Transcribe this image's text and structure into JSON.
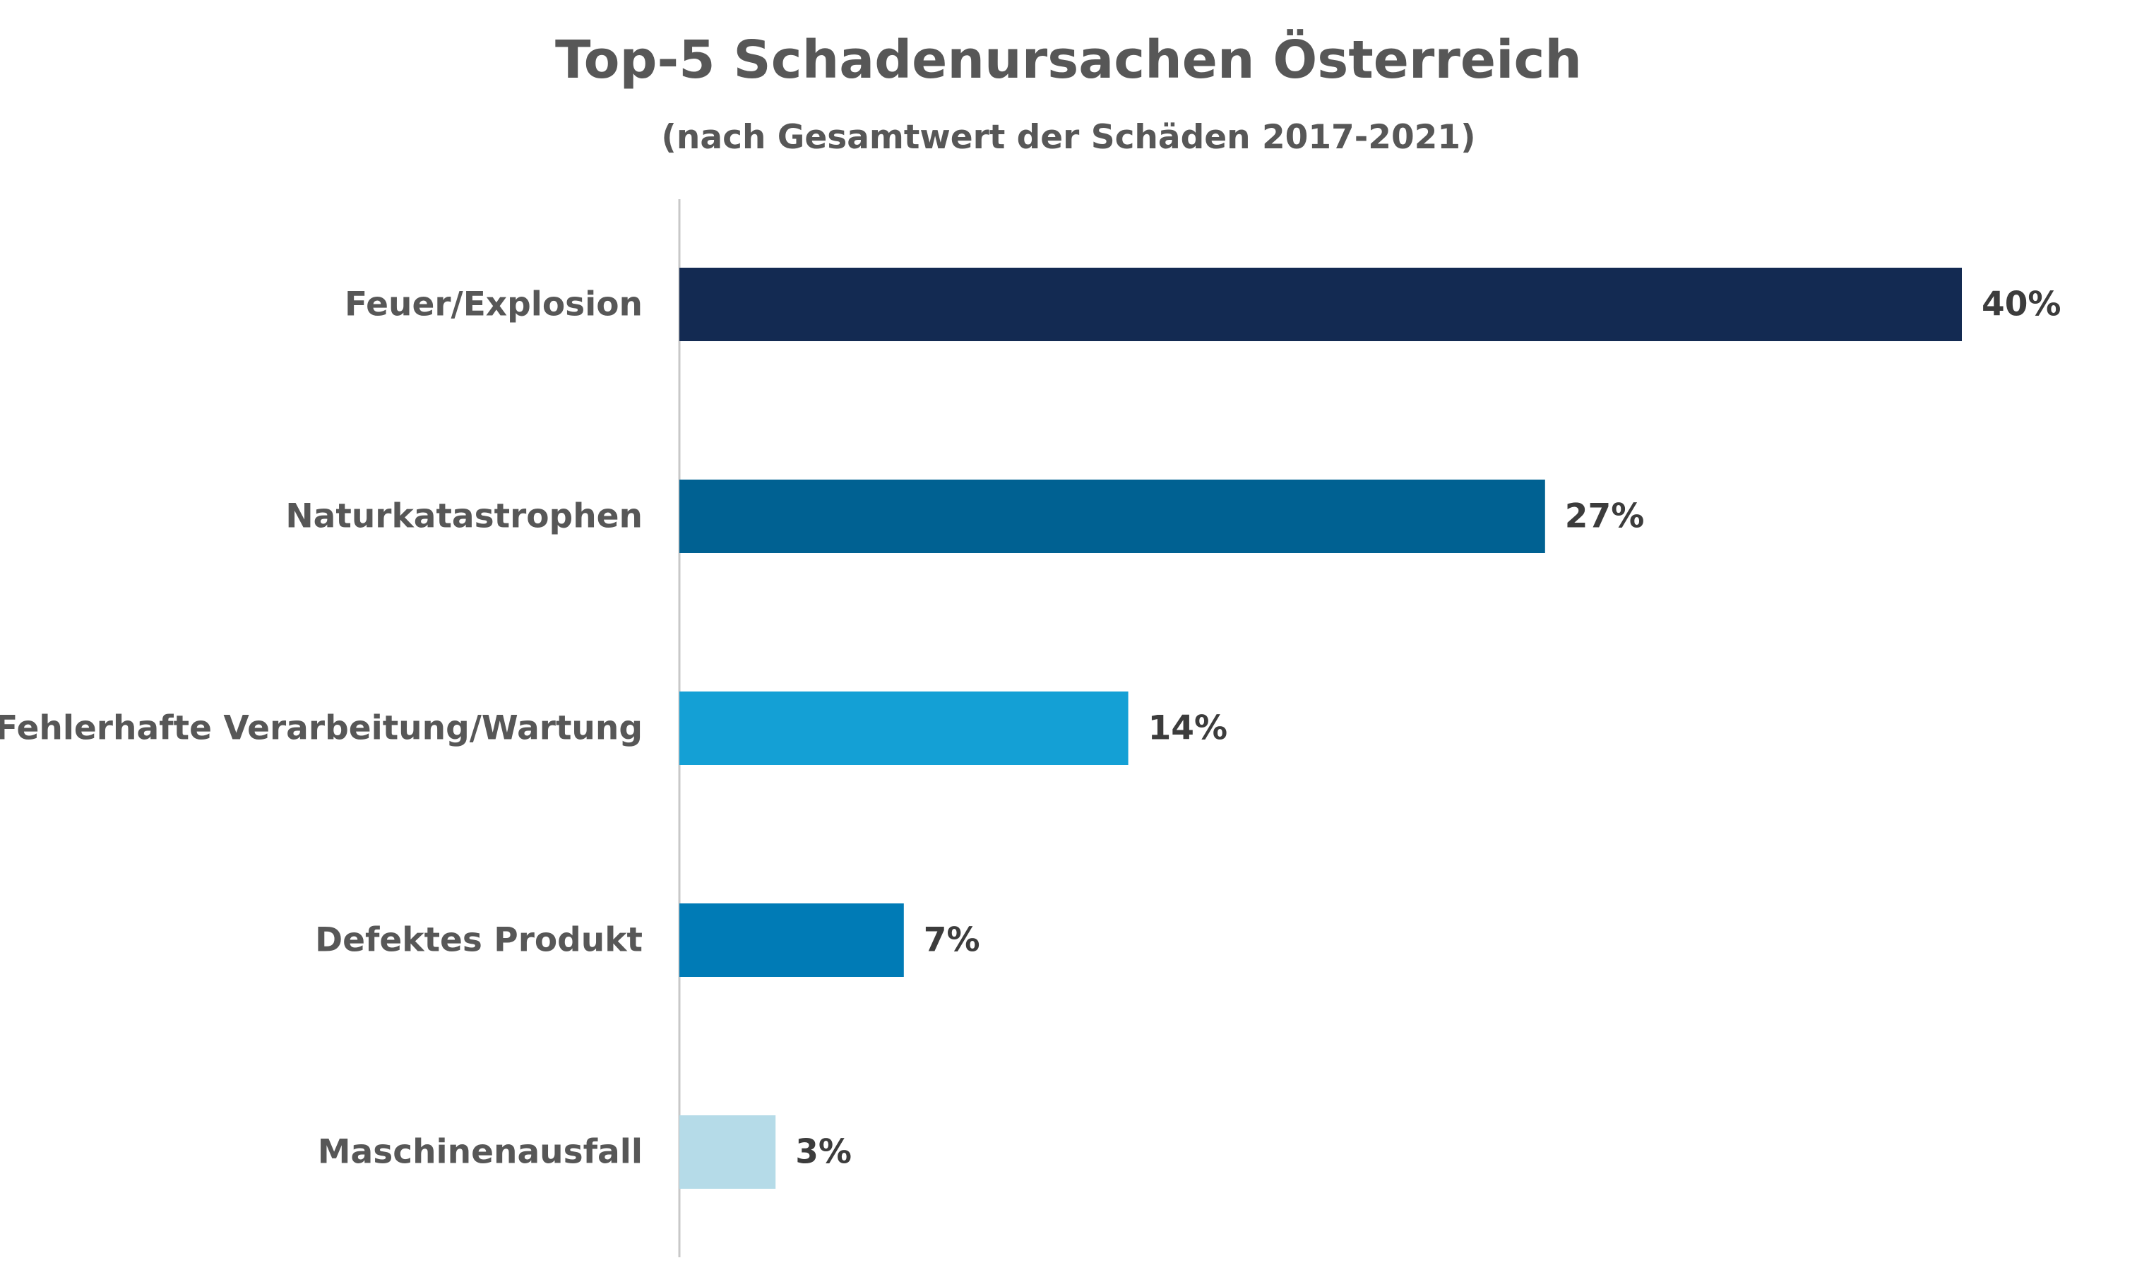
{
  "chart_data": {
    "type": "bar",
    "orientation": "horizontal",
    "title": "Top-5 Schadenursachen Österreich",
    "subtitle": "(nach Gesamtwert der Schäden 2017-2021)",
    "categories": [
      "Feuer/Explosion",
      "Naturkatastrophen",
      "Fehlerhafte Verarbeitung/Wartung",
      "Defektes Produkt",
      "Maschinenausfall"
    ],
    "values": [
      40,
      27,
      14,
      7,
      3
    ],
    "value_labels": [
      "40%",
      "27%",
      "14%",
      "7%",
      "3%"
    ],
    "colors": [
      "#132a52",
      "#006192",
      "#14a0d5",
      "#007bb6",
      "#b5dbe8"
    ],
    "xlim": [
      0,
      40
    ],
    "axis_line_color": "#c8c8c8",
    "grid": false,
    "legend": "none"
  }
}
